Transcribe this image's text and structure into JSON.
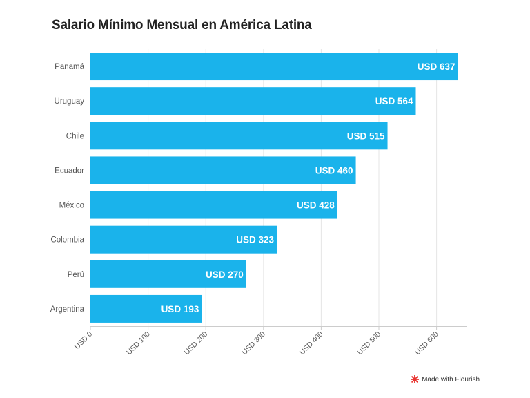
{
  "chart_data": {
    "type": "bar",
    "orientation": "horizontal",
    "title": "Salario Mínimo Mensual en América Latina",
    "categories": [
      "Panamá",
      "Uruguay",
      "Chile",
      "Ecuador",
      "México",
      "Colombia",
      "Perú",
      "Argentina"
    ],
    "values": [
      637,
      564,
      515,
      460,
      428,
      323,
      270,
      193
    ],
    "data_labels": [
      "USD 637",
      "USD 564",
      "USD 515",
      "USD 460",
      "USD 428",
      "USD 323",
      "USD 270",
      "USD 193"
    ],
    "x_ticks": [
      0,
      100,
      200,
      300,
      400,
      500,
      600
    ],
    "x_tick_labels": [
      "USD 0",
      "USD 100",
      "USD 200",
      "USD 300",
      "USD 400",
      "USD 500",
      "USD 600"
    ],
    "xlim": [
      0,
      650
    ],
    "grid": true,
    "bar_color": "#1ab3eb",
    "label_color": "#ffffff"
  },
  "footer": {
    "credit": "Made with Flourish",
    "credit_icon": "flourish-logo-icon",
    "credit_icon_color": "#e8322e"
  }
}
